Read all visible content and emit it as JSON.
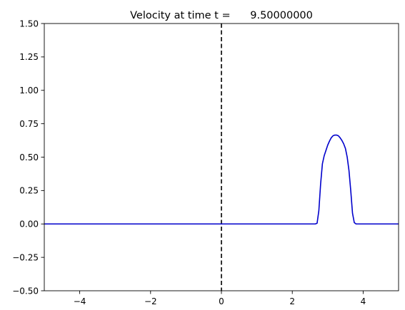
{
  "chart_data": {
    "type": "line",
    "title": "Velocity at time t =      9.50000000",
    "xlabel": "",
    "ylabel": "",
    "xlim": [
      -5,
      5
    ],
    "ylim": [
      -0.5,
      1.5
    ],
    "x_ticks": [
      -4,
      -2,
      0,
      2,
      4
    ],
    "x_tick_labels": [
      "−4",
      "−2",
      "0",
      "2",
      "4"
    ],
    "y_ticks": [
      -0.5,
      -0.25,
      0,
      0.25,
      0.5,
      0.75,
      1.0,
      1.25,
      1.5
    ],
    "y_tick_labels": [
      "−0.50",
      "−0.25",
      "0.00",
      "0.25",
      "0.50",
      "0.75",
      "1.00",
      "1.25",
      "1.50"
    ],
    "grid": false,
    "series": [
      {
        "color": "#0000cc",
        "style": "solid",
        "x": [
          -5,
          2.65,
          2.7,
          2.75,
          2.8,
          2.85,
          2.9,
          2.95,
          3.0,
          3.05,
          3.1,
          3.15,
          3.2,
          3.25,
          3.3,
          3.35,
          3.4,
          3.45,
          3.5,
          3.55,
          3.6,
          3.65,
          3.7,
          3.75,
          3.8,
          3.85,
          5
        ],
        "y": [
          0.0,
          0.0,
          0.005,
          0.1,
          0.3,
          0.45,
          0.51,
          0.55,
          0.59,
          0.62,
          0.645,
          0.66,
          0.665,
          0.665,
          0.66,
          0.645,
          0.625,
          0.6,
          0.565,
          0.5,
          0.4,
          0.25,
          0.08,
          0.01,
          0.0,
          0.0,
          0.0
        ]
      }
    ],
    "vline": {
      "x": 0,
      "color": "#000000",
      "style": "dashed"
    }
  }
}
